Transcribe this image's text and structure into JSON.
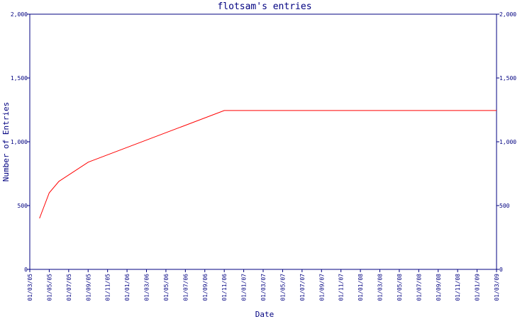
{
  "chart_data": {
    "type": "line",
    "title": "flotsam's entries",
    "xlabel": "Date",
    "ylabel": "Number of Entries",
    "ylim": [
      0,
      2000
    ],
    "yticks": [
      0,
      500,
      1000,
      1500,
      2000
    ],
    "ytick_labels": [
      "0",
      "500",
      "1,000",
      "1,500",
      "2,000"
    ],
    "xlim": [
      "2005-01-03",
      "2009-01-03"
    ],
    "xticks": [
      "2005-01-03",
      "2005-01-05",
      "2005-01-07",
      "2005-01-09",
      "2005-01-11",
      "2006-01-01",
      "2006-01-03",
      "2006-01-05",
      "2006-01-07",
      "2006-01-09",
      "2006-01-11",
      "2007-01-01",
      "2007-01-03",
      "2007-01-05",
      "2007-01-07",
      "2007-01-09",
      "2007-01-11",
      "2008-01-01",
      "2008-01-03",
      "2008-01-05",
      "2008-01-07",
      "2008-01-09",
      "2008-01-11",
      "2009-01-01",
      "2009-01-03"
    ],
    "xtick_labels": [
      "01/03/05",
      "01/05/05",
      "01/07/05",
      "01/09/05",
      "01/11/05",
      "01/01/06",
      "01/03/06",
      "01/05/06",
      "01/07/06",
      "01/09/06",
      "01/11/06",
      "01/01/07",
      "01/03/07",
      "01/05/07",
      "01/07/07",
      "01/09/07",
      "01/11/07",
      "01/01/08",
      "01/03/08",
      "01/05/08",
      "01/07/08",
      "01/09/08",
      "01/11/08",
      "01/01/09",
      "01/03/09"
    ],
    "series": [
      {
        "color": "#ff0000",
        "x": [
          "2005-01-04",
          "2005-01-05",
          "2005-01-06",
          "2005-01-09",
          "2006-01-12",
          "2009-01-03"
        ],
        "y": [
          400,
          600,
          690,
          840,
          1245,
          1245
        ]
      }
    ],
    "grid": false,
    "legend": "none",
    "right_axis_mirror": true
  }
}
